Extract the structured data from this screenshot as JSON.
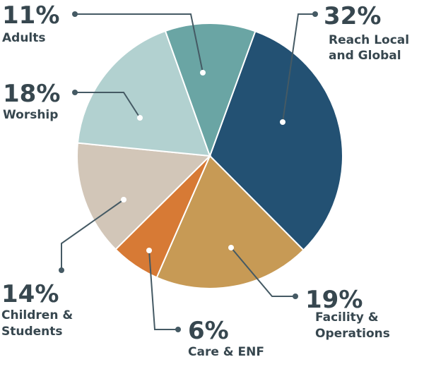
{
  "chart_data": {
    "type": "pie",
    "title": "",
    "slices": [
      {
        "label_lines": [
          "Reach Local",
          "and Global"
        ],
        "pct_text": "32%",
        "value": 32,
        "color": "#235173"
      },
      {
        "label_lines": [
          "Facility &",
          "Operations"
        ],
        "pct_text": "19%",
        "value": 19,
        "color": "#c79a55"
      },
      {
        "label_lines": [
          "Care & ENF"
        ],
        "pct_text": "6%",
        "value": 6,
        "color": "#d77a35"
      },
      {
        "label_lines": [
          "Children &",
          "Students"
        ],
        "pct_text": "14%",
        "value": 14,
        "color": "#d2c6b8"
      },
      {
        "label_lines": [
          "Worship"
        ],
        "pct_text": "18%",
        "value": 18,
        "color": "#b2d1d0"
      },
      {
        "label_lines": [
          "Adults"
        ],
        "pct_text": "11%",
        "value": 11,
        "color": "#6aa5a4"
      }
    ]
  }
}
